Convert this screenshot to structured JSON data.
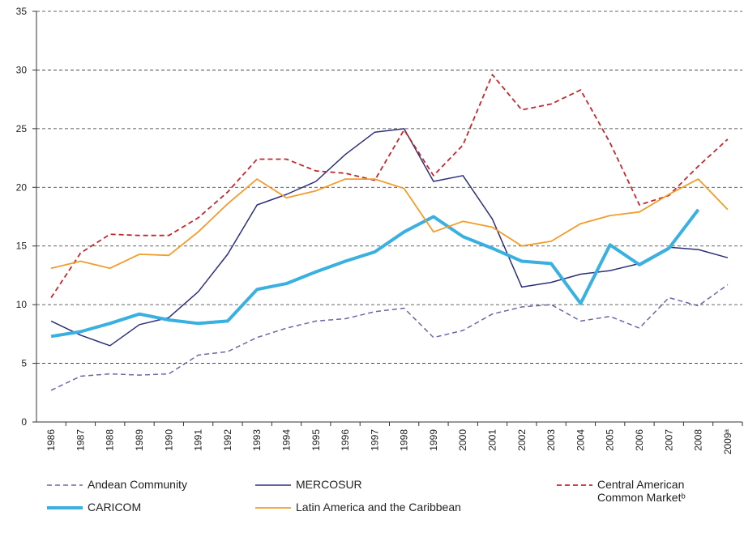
{
  "chart_data": {
    "type": "line",
    "categories": [
      "1986",
      "1987",
      "1988",
      "1989",
      "1990",
      "1991",
      "1992",
      "1993",
      "1994",
      "1995",
      "1996",
      "1997",
      "1998",
      "1999",
      "2000",
      "2001",
      "2002",
      "2003",
      "2004",
      "2005",
      "2006",
      "2007",
      "2008",
      "2009ᵃ"
    ],
    "series": [
      {
        "name": "Andean Community",
        "color": "#6b66a8",
        "dashed": true,
        "values": [
          2.7,
          3.9,
          4.1,
          4.0,
          4.1,
          5.7,
          6.0,
          7.2,
          8.0,
          8.6,
          8.8,
          9.4,
          9.7,
          7.2,
          7.8,
          9.2,
          9.8,
          10.0,
          8.6,
          9.0,
          8.0,
          10.6,
          9.9,
          11.7
        ]
      },
      {
        "name": "MERCOSUR",
        "color": "#2b2f7a",
        "dashed": false,
        "values": [
          8.6,
          7.4,
          6.5,
          8.3,
          8.9,
          11.1,
          14.3,
          18.5,
          19.4,
          20.5,
          22.8,
          24.7,
          25.0,
          20.5,
          21.0,
          17.3,
          11.5,
          11.9,
          12.6,
          12.9,
          13.5,
          14.9,
          14.7,
          14.0
        ]
      },
      {
        "name": "Central American Common Marketᵇ",
        "color": "#c1272d",
        "dashed": true,
        "values": [
          10.6,
          14.4,
          16.0,
          15.9,
          15.9,
          17.4,
          19.6,
          22.4,
          22.4,
          21.4,
          21.2,
          20.6,
          24.9,
          21.0,
          23.6,
          29.6,
          26.6,
          27.1,
          28.3,
          23.8,
          18.5,
          19.3,
          21.8,
          24.1
        ]
      },
      {
        "name": "CARICOM",
        "color": "#39b0e0",
        "dashed": false,
        "values": [
          7.3,
          7.7,
          8.4,
          9.2,
          8.7,
          8.4,
          8.6,
          11.3,
          11.8,
          12.8,
          13.7,
          14.5,
          16.2,
          17.5,
          15.8,
          14.8,
          13.7,
          13.5,
          10.1,
          15.1,
          13.4,
          14.8,
          18.1,
          null
        ]
      },
      {
        "name": "Latin America and the Caribbean",
        "color": "#f39c2a",
        "dashed": false,
        "values": [
          13.1,
          13.7,
          13.1,
          14.3,
          14.2,
          16.2,
          18.6,
          20.7,
          19.1,
          19.7,
          20.7,
          20.7,
          19.9,
          16.2,
          17.1,
          16.6,
          15.0,
          15.4,
          16.9,
          17.6,
          17.9,
          19.4,
          20.7,
          18.1
        ]
      }
    ],
    "ylim": [
      0,
      35
    ],
    "yticks": [
      0,
      5,
      10,
      15,
      20,
      25,
      30,
      35
    ],
    "grid": true
  }
}
